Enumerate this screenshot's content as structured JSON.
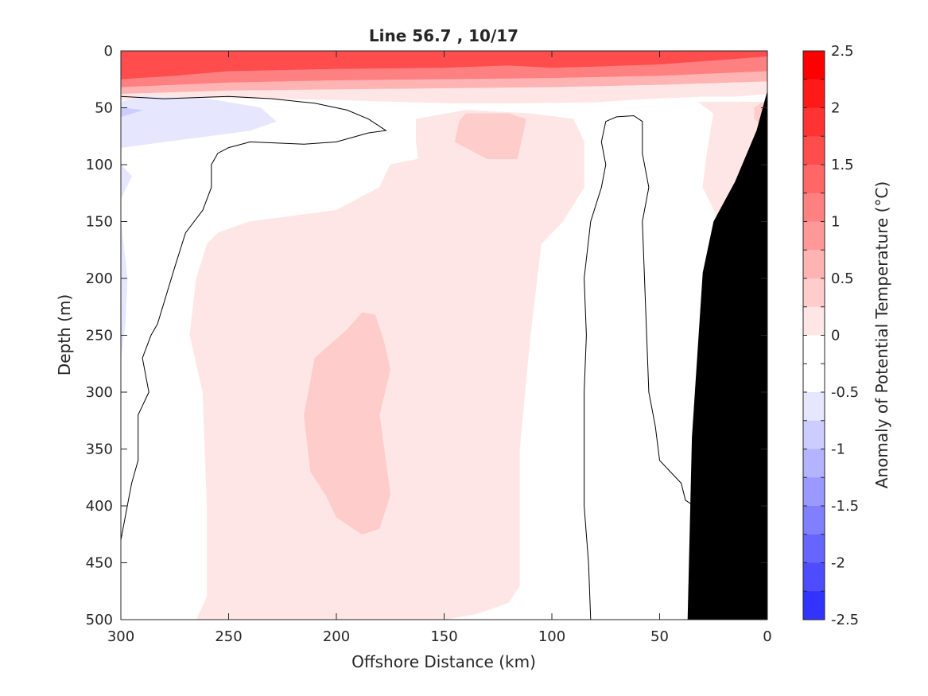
{
  "chart_data": {
    "type": "heatmap",
    "title": "Line 56.7 , 10/17",
    "xlabel": "Offshore Distance (km)",
    "ylabel": "Depth (m)",
    "xlim": [
      300,
      0
    ],
    "ylim": [
      0,
      500
    ],
    "x_reversed": true,
    "y_reversed": true,
    "xticks": [
      300,
      250,
      200,
      150,
      100,
      50,
      0
    ],
    "yticks": [
      0,
      50,
      100,
      150,
      200,
      250,
      300,
      350,
      400,
      450,
      500
    ],
    "colorbar": {
      "label": "Anomaly of Potential Temperature (°C)",
      "range": [
        -2.5,
        2.5
      ],
      "step": 0.25,
      "ticks": [
        "2.5",
        "2",
        "1.5",
        "1",
        "0.5",
        "0",
        "-0.5",
        "-1",
        "-1.5",
        "-2",
        "-2.5"
      ],
      "tick_values": [
        2.5,
        2,
        1.5,
        1,
        0.5,
        0,
        -0.5,
        -1,
        -1.5,
        -2,
        -2.5
      ],
      "colors_top_to_bottom": [
        "#ff0000",
        "#ff1a1a",
        "#ff3333",
        "#ff4d4d",
        "#ff6666",
        "#ff8080",
        "#ff9999",
        "#ffb3b3",
        "#ffcccc",
        "#ffe6e6",
        "#ffffff",
        "#ffffff",
        "#e6e6ff",
        "#ccccff",
        "#b3b3ff",
        "#9999ff",
        "#8080ff",
        "#6666ff",
        "#4d4dff",
        "#3333ff"
      ]
    },
    "bottom_color": "#000000",
    "bottom_profile": [
      [
        0,
        35
      ],
      [
        5,
        70
      ],
      [
        15,
        115
      ],
      [
        25,
        150
      ],
      [
        30,
        195
      ],
      [
        35,
        340
      ],
      [
        37,
        500
      ]
    ],
    "regions": [
      {
        "value": 2.25,
        "color": "#ff1a1a",
        "points": [
          [
            300,
            0
          ],
          [
            300,
            25
          ],
          [
            275,
            22
          ],
          [
            270,
            10
          ],
          [
            275,
            0
          ]
        ]
      },
      {
        "value": 2.0,
        "color": "#ff3333",
        "points": [
          [
            275,
            0
          ],
          [
            270,
            10
          ],
          [
            250,
            12
          ],
          [
            200,
            10
          ],
          [
            150,
            8
          ],
          [
            120,
            6
          ],
          [
            105,
            8
          ],
          [
            95,
            10
          ],
          [
            80,
            8
          ],
          [
            65,
            0
          ]
        ]
      },
      {
        "value": 1.75,
        "color": "#ff4d4d",
        "points": [
          [
            300,
            25
          ],
          [
            275,
            22
          ],
          [
            250,
            18
          ],
          [
            200,
            16
          ],
          [
            150,
            15
          ],
          [
            120,
            13
          ],
          [
            100,
            15
          ],
          [
            80,
            14
          ],
          [
            50,
            12
          ],
          [
            20,
            8
          ],
          [
            0,
            5
          ],
          [
            0,
            0
          ],
          [
            300,
            0
          ]
        ]
      },
      {
        "value": 1.25,
        "color": "#ff8080",
        "points": [
          [
            300,
            32
          ],
          [
            250,
            28
          ],
          [
            200,
            26
          ],
          [
            150,
            25
          ],
          [
            100,
            24
          ],
          [
            50,
            22
          ],
          [
            0,
            18
          ],
          [
            0,
            5
          ],
          [
            20,
            8
          ],
          [
            50,
            12
          ],
          [
            80,
            14
          ],
          [
            100,
            15
          ],
          [
            120,
            13
          ],
          [
            150,
            15
          ],
          [
            200,
            16
          ],
          [
            250,
            18
          ],
          [
            275,
            22
          ],
          [
            300,
            25
          ]
        ]
      },
      {
        "value": 0.75,
        "color": "#ffb3b3",
        "points": [
          [
            300,
            38
          ],
          [
            250,
            35
          ],
          [
            200,
            34
          ],
          [
            150,
            33
          ],
          [
            100,
            32
          ],
          [
            50,
            30
          ],
          [
            0,
            27
          ],
          [
            0,
            18
          ],
          [
            50,
            22
          ],
          [
            100,
            24
          ],
          [
            150,
            25
          ],
          [
            200,
            26
          ],
          [
            250,
            28
          ],
          [
            300,
            32
          ]
        ]
      },
      {
        "value": 0.25,
        "color": "#ffe6e6",
        "points": [
          [
            300,
            43
          ],
          [
            260,
            41
          ],
          [
            200,
            43
          ],
          [
            145,
            46
          ],
          [
            120,
            46
          ],
          [
            80,
            45
          ],
          [
            55,
            42
          ],
          [
            30,
            40
          ],
          [
            15,
            40
          ],
          [
            0,
            38
          ],
          [
            0,
            27
          ],
          [
            50,
            30
          ],
          [
            100,
            32
          ],
          [
            150,
            33
          ],
          [
            200,
            34
          ],
          [
            250,
            35
          ],
          [
            300,
            38
          ]
        ]
      },
      {
        "value": 0.25,
        "color": "#ffe6e6",
        "points": [
          [
            163,
            60
          ],
          [
            163,
            80
          ],
          [
            162,
            95
          ],
          [
            175,
            100
          ],
          [
            180,
            120
          ],
          [
            200,
            140
          ],
          [
            220,
            145
          ],
          [
            240,
            150
          ],
          [
            255,
            160
          ],
          [
            260,
            170
          ],
          [
            265,
            200
          ],
          [
            268,
            250
          ],
          [
            262,
            300
          ],
          [
            260,
            400
          ],
          [
            260,
            480
          ],
          [
            265,
            500
          ],
          [
            150,
            500
          ],
          [
            135,
            495
          ],
          [
            120,
            485
          ],
          [
            115,
            470
          ],
          [
            115,
            350
          ],
          [
            110,
            250
          ],
          [
            105,
            170
          ],
          [
            95,
            150
          ],
          [
            85,
            120
          ],
          [
            85,
            80
          ],
          [
            90,
            60
          ],
          [
            110,
            55
          ],
          [
            140,
            52
          ]
        ]
      },
      {
        "value": 0.25,
        "color": "#ffe6e6",
        "points": [
          [
            32,
            45
          ],
          [
            25,
            55
          ],
          [
            28,
            90
          ],
          [
            30,
            120
          ],
          [
            22,
            150
          ],
          [
            15,
            115
          ],
          [
            5,
            70
          ],
          [
            0,
            35
          ],
          [
            0,
            45
          ]
        ]
      },
      {
        "value": 0.75,
        "color": "#ffcccc",
        "points": [
          [
            140,
            55
          ],
          [
            120,
            55
          ],
          [
            112,
            60
          ],
          [
            116,
            95
          ],
          [
            130,
            95
          ],
          [
            145,
            80
          ],
          [
            143,
            62
          ]
        ]
      },
      {
        "value": 0.75,
        "color": "#ffcccc",
        "points": [
          [
            195,
            245
          ],
          [
            188,
            230
          ],
          [
            182,
            232
          ],
          [
            178,
            255
          ],
          [
            175,
            280
          ],
          [
            180,
            320
          ],
          [
            175,
            390
          ],
          [
            180,
            420
          ],
          [
            188,
            425
          ],
          [
            200,
            410
          ],
          [
            205,
            390
          ],
          [
            212,
            370
          ],
          [
            215,
            320
          ],
          [
            210,
            270
          ]
        ]
      },
      {
        "value": 0.75,
        "color": "#ffcccc",
        "points": [
          [
            6,
            50
          ],
          [
            2,
            45
          ],
          [
            0,
            50
          ],
          [
            2,
            65
          ],
          [
            6,
            60
          ]
        ]
      },
      {
        "value": -0.25,
        "color": "#e6e6ff",
        "points": [
          [
            300,
            45
          ],
          [
            290,
            40
          ],
          [
            260,
            42
          ],
          [
            235,
            50
          ],
          [
            228,
            62
          ],
          [
            240,
            70
          ],
          [
            260,
            75
          ],
          [
            280,
            80
          ],
          [
            300,
            85
          ]
        ]
      },
      {
        "value": -0.25,
        "color": "#e6e6ff",
        "points": [
          [
            300,
            100
          ],
          [
            295,
            110
          ],
          [
            300,
            130
          ]
        ]
      },
      {
        "value": -0.25,
        "color": "#e6e6ff",
        "points": [
          [
            300,
            150
          ],
          [
            297,
            200
          ],
          [
            298,
            240
          ],
          [
            300,
            270
          ]
        ]
      },
      {
        "value": -0.5,
        "color": "#ccccff",
        "points": [
          [
            300,
            50
          ],
          [
            290,
            52
          ],
          [
            300,
            58
          ]
        ]
      }
    ],
    "contour_lines": [
      [
        [
          300,
          40
        ],
        [
          280,
          42
        ],
        [
          250,
          40
        ],
        [
          230,
          42
        ],
        [
          210,
          46
        ],
        [
          195,
          52
        ],
        [
          185,
          60
        ],
        [
          177,
          70
        ],
        [
          185,
          72
        ],
        [
          200,
          80
        ],
        [
          215,
          82
        ],
        [
          240,
          80
        ],
        [
          250,
          85
        ],
        [
          255,
          90
        ],
        [
          258,
          100
        ],
        [
          258,
          120
        ],
        [
          262,
          140
        ],
        [
          270,
          160
        ],
        [
          275,
          190
        ],
        [
          283,
          240
        ],
        [
          286,
          250
        ],
        [
          290,
          270
        ],
        [
          287,
          300
        ],
        [
          292,
          320
        ],
        [
          292,
          345
        ],
        [
          292,
          360
        ],
        [
          295,
          380
        ],
        [
          297,
          400
        ],
        [
          300,
          430
        ],
        [
          300,
          460
        ],
        [
          305,
          490
        ],
        [
          310,
          500
        ]
      ],
      [
        [
          82,
          500
        ],
        [
          83,
          450
        ],
        [
          85,
          400
        ],
        [
          85,
          300
        ],
        [
          84,
          250
        ],
        [
          85,
          200
        ],
        [
          82,
          150
        ],
        [
          77,
          120
        ],
        [
          75,
          100
        ],
        [
          77,
          80
        ],
        [
          75,
          62
        ],
        [
          70,
          58
        ],
        [
          62,
          57
        ],
        [
          58,
          62
        ],
        [
          58,
          90
        ],
        [
          55,
          120
        ],
        [
          58,
          150
        ],
        [
          57,
          200
        ],
        [
          56,
          250
        ],
        [
          55,
          300
        ],
        [
          52,
          330
        ],
        [
          50,
          360
        ],
        [
          45,
          370
        ],
        [
          40,
          380
        ],
        [
          38,
          395
        ],
        [
          30,
          405
        ]
      ]
    ]
  }
}
